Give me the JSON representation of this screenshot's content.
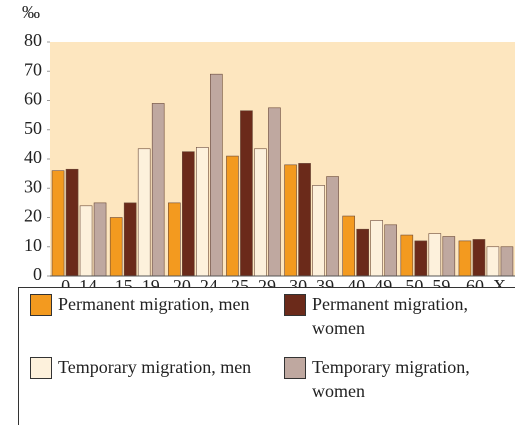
{
  "chart_data": {
    "type": "bar",
    "y_label": "‰",
    "categories": [
      "0–14",
      "15–19",
      "20–24",
      "25–29",
      "30–39",
      "40–49",
      "50–59",
      "60–X"
    ],
    "series": [
      {
        "name": "Permanent migration, men",
        "color": "#f39a1f",
        "values": [
          36,
          20,
          25,
          41,
          38,
          20.5,
          14,
          12
        ]
      },
      {
        "name": "Permanent migration, women",
        "color": "#6b2a1a",
        "values": [
          36.5,
          25,
          42.5,
          56.5,
          38.5,
          16,
          12,
          12.5
        ]
      },
      {
        "name": "Temporary migration, men",
        "color": "#fdf1dc",
        "values": [
          24,
          43.5,
          44,
          43.5,
          31,
          19,
          14.5,
          10
        ]
      },
      {
        "name": "Temporary migration, women",
        "color": "#bfa8a0",
        "values": [
          25,
          59,
          69,
          57.5,
          34,
          17.5,
          13.5,
          10
        ]
      }
    ],
    "ylim": [
      0,
      80
    ],
    "yticks": [
      0,
      10,
      20,
      30,
      40,
      50,
      60,
      70,
      80
    ],
    "background": "#fde6bf"
  }
}
